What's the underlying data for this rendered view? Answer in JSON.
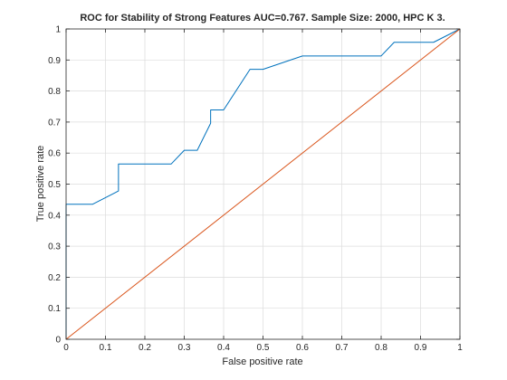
{
  "chart_data": {
    "type": "line",
    "title": "ROC for Stability of Strong Features AUC=0.767. Sample Size: 2000, HPC K 3.",
    "xlabel": "False positive rate",
    "ylabel": "True positive rate",
    "xlim": [
      0,
      1
    ],
    "ylim": [
      0,
      1
    ],
    "xticks": [
      "0",
      "0.1",
      "0.2",
      "0.3",
      "0.4",
      "0.5",
      "0.6",
      "0.7",
      "0.8",
      "0.9",
      "1"
    ],
    "yticks": [
      "0",
      "0.1",
      "0.2",
      "0.3",
      "0.4",
      "0.5",
      "0.6",
      "0.7",
      "0.8",
      "0.9",
      "1"
    ],
    "grid": true,
    "legend": "none",
    "series": [
      {
        "color": "#0072BD",
        "x": [
          0,
          0,
          0.067,
          0.133,
          0.133,
          0.267,
          0.3,
          0.3,
          0.333,
          0.367,
          0.367,
          0.4,
          0.467,
          0.5,
          0.6,
          0.8,
          0.833,
          0.933,
          1
        ],
        "y": [
          0,
          0.435,
          0.435,
          0.478,
          0.565,
          0.565,
          0.609,
          0.609,
          0.609,
          0.696,
          0.739,
          0.739,
          0.87,
          0.87,
          0.913,
          0.913,
          0.957,
          0.957,
          1
        ]
      },
      {
        "color": "#D95319",
        "x": [
          0,
          1
        ],
        "y": [
          0,
          1
        ]
      }
    ]
  }
}
